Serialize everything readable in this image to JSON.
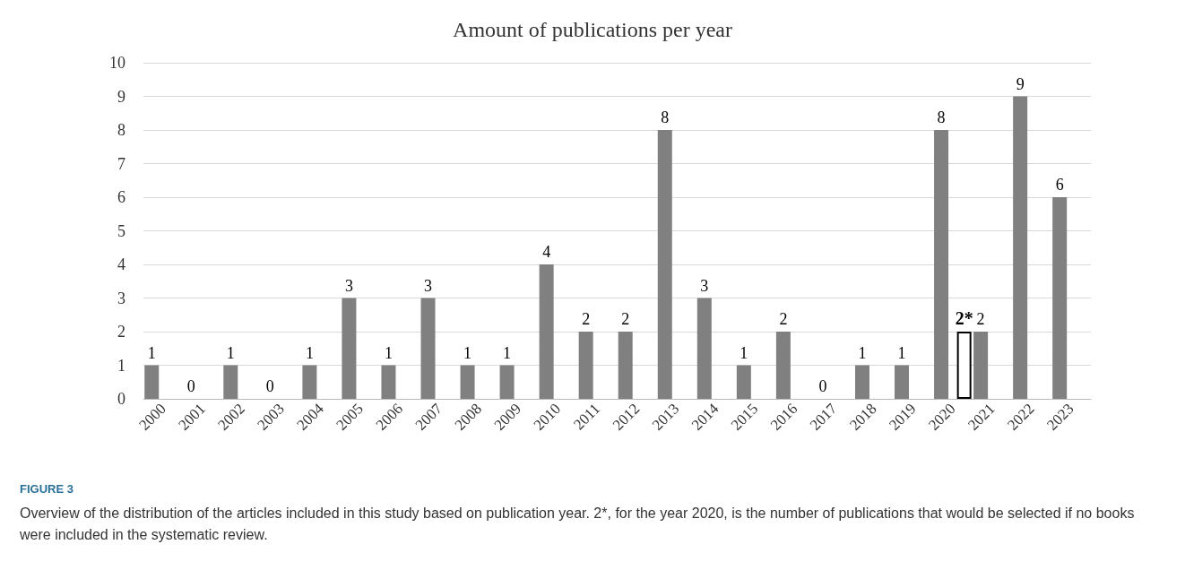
{
  "chart_data": {
    "type": "bar",
    "title": "Amount of publications per year",
    "categories": [
      "2000",
      "2001",
      "2002",
      "2003",
      "2004",
      "2005",
      "2006",
      "2007",
      "2008",
      "2009",
      "2010",
      "2011",
      "2012",
      "2013",
      "2014",
      "2015",
      "2016",
      "2017",
      "2018",
      "2019",
      "2020",
      "2021",
      "2022",
      "2023"
    ],
    "series": [
      {
        "color": "#808080",
        "values": [
          1,
          0,
          1,
          0,
          1,
          3,
          1,
          3,
          1,
          1,
          4,
          2,
          2,
          8,
          3,
          1,
          2,
          0,
          1,
          1,
          8,
          2,
          9,
          6
        ]
      },
      {
        "color": "#ffffff",
        "values": [
          null,
          null,
          null,
          null,
          null,
          null,
          null,
          null,
          null,
          null,
          null,
          null,
          null,
          null,
          null,
          null,
          null,
          null,
          null,
          null,
          2,
          null,
          null,
          null
        ],
        "value_labels": [
          null,
          null,
          null,
          null,
          null,
          null,
          null,
          null,
          null,
          null,
          null,
          null,
          null,
          null,
          null,
          null,
          null,
          null,
          null,
          null,
          "2*",
          null,
          null,
          null
        ]
      }
    ],
    "data_labels": true,
    "ylim": [
      0,
      10
    ],
    "yticks": [
      0,
      1,
      2,
      3,
      4,
      5,
      6,
      7,
      8,
      9,
      10
    ],
    "grid": "y",
    "annotations": [
      "FIGURE 3",
      "Overview of the distribution of the articles included in this study based on publication year. 2*, for the year 2020, is the number of publications that would be selected if no books were included in the systematic review."
    ]
  }
}
